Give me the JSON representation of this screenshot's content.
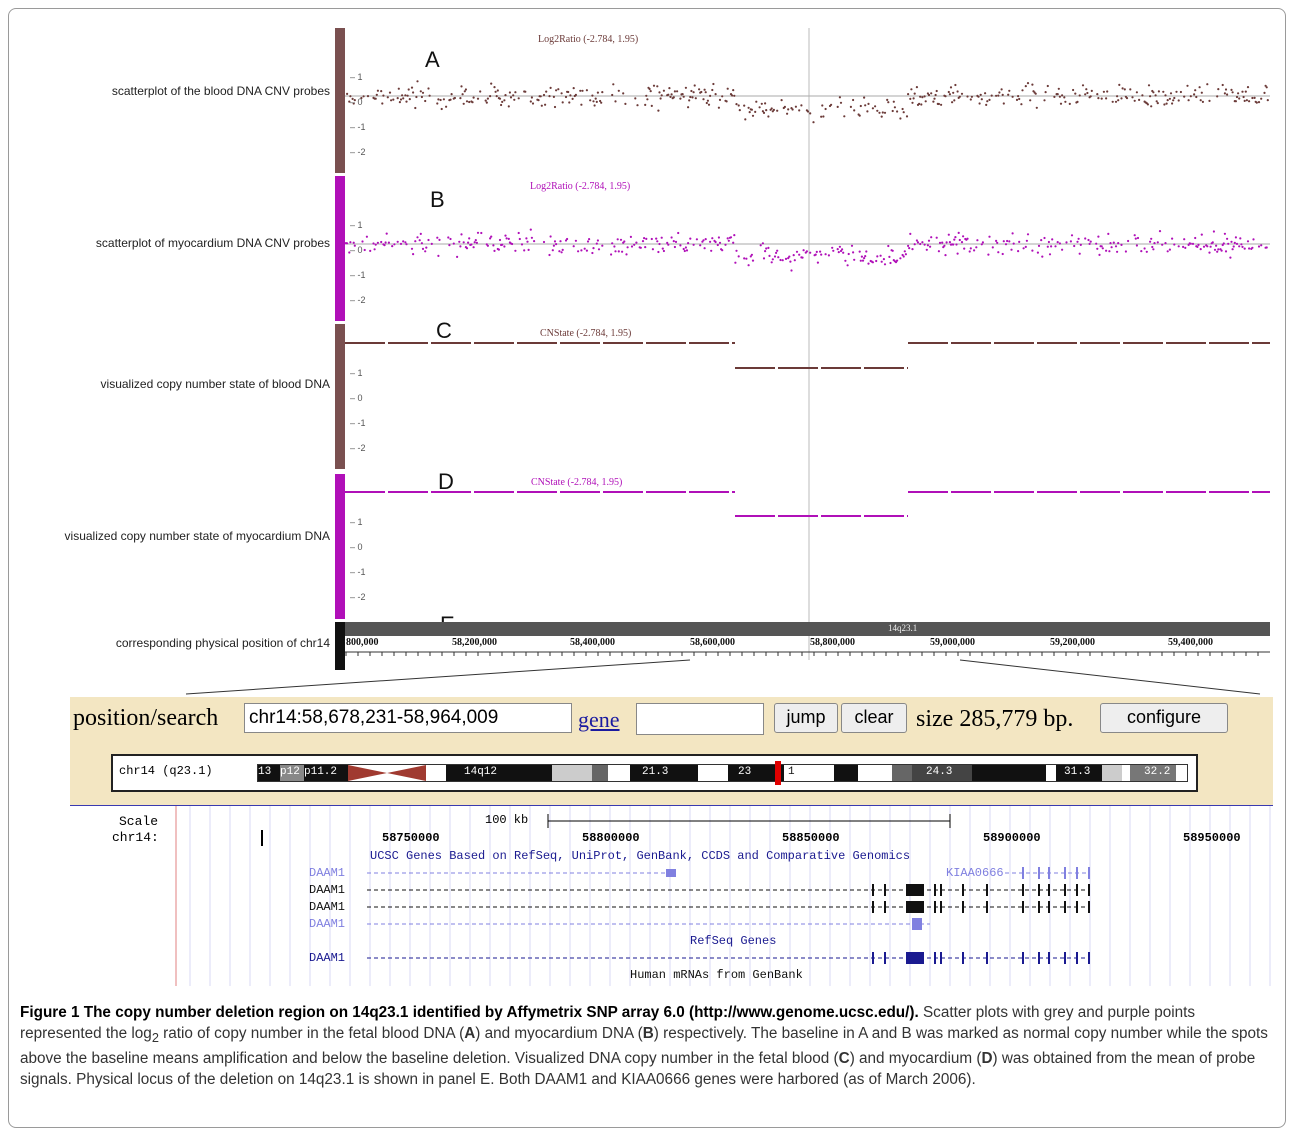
{
  "tracks": {
    "blood_scatter_label": "scatterplot of the blood DNA CNV probes",
    "myo_scatter_label": "scatterplot of myocardium DNA CNV probes",
    "blood_state_label": "visualized copy number state of blood DNA",
    "myo_state_label": "visualized copy number state of myocardium DNA",
    "position_label": "corresponding physical position of chr14",
    "title_a": "Log2Ratio (-2.784, 1.95)",
    "title_b": "Log2Ratio (-2.784, 1.95)",
    "title_c": "CNState (-2.784, 1.95)",
    "title_d": "CNState (-2.784, 1.95)",
    "letters": [
      "A",
      "B",
      "C",
      "D",
      "E"
    ],
    "yticks": [
      "1",
      "0",
      "-1",
      "-2"
    ],
    "band_label": "14q23.1",
    "positions": [
      "800,000",
      "58,200,000",
      "58,400,000",
      "58,600,000",
      "58,800,000",
      "59,000,000",
      "59,200,000",
      "59,400,000"
    ],
    "colors": {
      "blood": "#6b3a38",
      "myo": "#b010b8"
    }
  },
  "nav": {
    "position_label": "position/search",
    "position_value": "chr14:58,678,231-58,964,009",
    "gene_link": "gene",
    "jump_button": "jump",
    "clear_button": "clear",
    "size_text": "size 285,779 bp.",
    "configure_button": "configure",
    "ideogram_label": "chr14 (q23.1)",
    "bands": [
      "13",
      "p12",
      "p11.2",
      "14q12",
      "21.3",
      "23",
      "1",
      "24.3",
      "31.3",
      "32.2"
    ]
  },
  "browser": {
    "scale_label": "Scale",
    "chrom_label": "chr14:",
    "scale_bar": "100 kb",
    "coords": [
      "58750000",
      "58800000",
      "58850000",
      "58900000",
      "58950000"
    ],
    "ucsc_genes_title": "UCSC Genes Based on RefSeq, UniProt, GenBank, CCDS and Comparative Genomics",
    "gene_rows": [
      "DAAM1",
      "DAAM1",
      "DAAM1",
      "DAAM1"
    ],
    "kiaa_label": "KIAA0666",
    "refseq_title": "RefSeq Genes",
    "refseq_row": "DAAM1",
    "mrna_title": "Human mRNAs from GenBank"
  },
  "caption": {
    "title": "Figure 1 The copy number deletion region on 14q23.1 identified by Affymetrix SNP array 6.0 (http://www.genome.ucsc.edu/).",
    "body_1": "Scatter plots with grey and purple points represented the log",
    "body_sub": "2",
    "body_2": " ratio of copy number in the fetal blood DNA (",
    "A": "A",
    "body_3": ") and myocardium DNA (",
    "B": "B",
    "body_4": ") respectively. The baseline in A and B was marked as normal copy number while the spots above the baseline means amplification and below the baseline deletion. Visualized DNA copy number in the fetal blood (",
    "C": "C",
    "body_5": ") and myocardium (",
    "D": "D",
    "body_6": ") was obtained from the mean of probe signals. Physical locus of the deletion on 14q23.1 is shown in panel E. Both DAAM1 and KIAA0666 genes were harbored (as of March 2006)."
  }
}
